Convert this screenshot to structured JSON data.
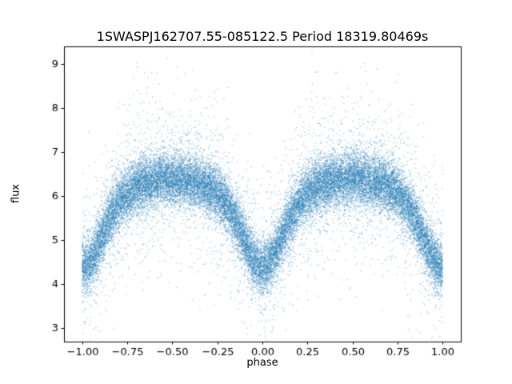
{
  "figure": {
    "title": "1SWASPJ162707.55-085122.5 Period 18319.80469s",
    "xlabel": "phase",
    "ylabel": "flux"
  },
  "chart_data": {
    "type": "scatter",
    "title": "1SWASPJ162707.55-085122.5 Period 18319.80469s",
    "xlabel": "phase",
    "ylabel": "flux",
    "xlim": [
      -1.1,
      1.1
    ],
    "ylim": [
      2.7,
      9.4
    ],
    "grid": false,
    "legend": "none",
    "xticks": {
      "values": [
        -1.0,
        -0.75,
        -0.5,
        -0.25,
        0.0,
        0.25,
        0.5,
        0.75,
        1.0
      ],
      "labels": [
        "−1.00",
        "−0.75",
        "−0.50",
        "−0.25",
        "0.00",
        "0.25",
        "0.50",
        "0.75",
        "1.00"
      ]
    },
    "yticks": {
      "values": [
        3,
        4,
        5,
        6,
        7,
        8,
        9
      ],
      "labels": [
        "3",
        "4",
        "5",
        "6",
        "7",
        "8",
        "9"
      ]
    },
    "marker_color": "#1f77b4",
    "marker_alpha": 0.4,
    "marker_size": 1.3,
    "n_points": 30000,
    "seed": 42,
    "mean_profile": {
      "phase": [
        -1.0,
        -0.9,
        -0.75,
        -0.6,
        -0.5,
        -0.4,
        -0.25,
        -0.1,
        0.0,
        0.1,
        0.25,
        0.4,
        0.5,
        0.6,
        0.75,
        0.9,
        1.0
      ],
      "flux": [
        4.4,
        5.5,
        6.1,
        6.3,
        6.4,
        6.3,
        6.1,
        5.2,
        4.4,
        5.2,
        6.1,
        6.3,
        6.4,
        6.3,
        6.1,
        5.5,
        4.4
      ]
    },
    "model": {
      "base": 5.9,
      "hump_amp": 0.5,
      "dip_depth": 1.5,
      "dip_width": 0.15,
      "noise_sigma": 0.3,
      "outlier_frac": 0.13,
      "outlier_sigma": 0.95
    }
  }
}
